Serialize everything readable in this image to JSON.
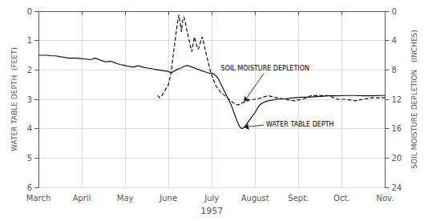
{
  "chart_data": {
    "type": "line",
    "xlabel": "1957",
    "ylabel": "WATER TABLE DEPTH  (FEET)",
    "y2label": "SOIL MOISTURE DEPLETION   (INCHES)",
    "xlim": [
      0,
      8
    ],
    "xticks": [
      {
        "value": 0,
        "label": "March"
      },
      {
        "value": 1,
        "label": "April"
      },
      {
        "value": 2,
        "label": "May"
      },
      {
        "value": 3,
        "label": "June"
      },
      {
        "value": 4,
        "label": "July"
      },
      {
        "value": 5,
        "label": "August"
      },
      {
        "value": 6,
        "label": "Sept."
      },
      {
        "value": 7,
        "label": "Oct."
      },
      {
        "value": 8,
        "label": "Nov."
      }
    ],
    "ylim": [
      6,
      0
    ],
    "yticks": [
      0,
      1,
      2,
      3,
      4,
      5,
      6
    ],
    "y2lim": [
      24,
      0
    ],
    "y2ticks": [
      0,
      4,
      8,
      12,
      16,
      20,
      24
    ],
    "grid": true,
    "series": [
      {
        "color": "#111111",
        "line_style": "solid",
        "x": [
          0.0,
          0.1,
          0.2,
          0.3,
          0.4,
          0.5,
          0.6,
          0.7,
          0.8,
          0.9,
          1.0,
          1.1,
          1.2,
          1.25,
          1.3,
          1.35,
          1.4,
          1.45,
          1.5,
          1.55,
          1.6,
          1.65,
          1.7,
          1.75,
          1.8,
          1.85,
          1.9,
          1.95,
          2.0,
          2.05,
          2.1,
          2.15,
          2.2,
          2.25,
          2.3,
          2.35,
          2.4,
          2.45,
          2.5,
          2.55,
          2.6,
          2.65,
          2.7,
          2.75,
          2.8,
          2.85,
          2.9,
          2.95,
          3.0,
          3.03,
          3.06,
          3.09,
          3.12,
          3.15,
          3.18,
          3.21,
          3.24,
          3.27,
          3.3,
          3.33,
          3.36,
          3.39,
          3.42,
          3.45,
          3.48,
          3.51,
          3.54,
          3.57,
          3.6,
          3.63,
          3.66,
          3.69,
          3.72,
          3.75,
          3.78,
          3.81,
          3.84,
          3.87,
          3.9,
          3.93,
          3.96,
          3.99,
          4.02,
          4.05,
          4.1,
          4.15,
          4.2,
          4.25,
          4.3,
          4.35,
          4.4,
          4.45,
          4.5,
          4.55,
          4.6,
          4.65,
          4.7,
          4.75,
          4.8,
          4.9,
          5.0,
          5.1,
          5.2,
          5.3,
          5.5,
          5.7,
          5.9,
          6.1,
          6.3,
          6.5,
          6.7,
          6.9,
          7.1,
          7.3,
          7.5,
          7.7,
          7.9,
          8.0
        ],
        "values": [
          1.5,
          1.5,
          1.5,
          1.52,
          1.52,
          1.55,
          1.57,
          1.6,
          1.6,
          1.6,
          1.62,
          1.63,
          1.65,
          1.63,
          1.6,
          1.62,
          1.65,
          1.68,
          1.7,
          1.72,
          1.72,
          1.7,
          1.72,
          1.75,
          1.78,
          1.8,
          1.82,
          1.83,
          1.85,
          1.87,
          1.88,
          1.9,
          1.9,
          1.88,
          1.86,
          1.88,
          1.9,
          1.92,
          1.93,
          1.95,
          1.95,
          1.97,
          1.98,
          2.0,
          2.0,
          2.02,
          2.03,
          2.04,
          2.05,
          2.08,
          2.1,
          2.08,
          2.05,
          2.03,
          2.0,
          1.98,
          1.96,
          1.95,
          1.93,
          1.9,
          1.88,
          1.87,
          1.85,
          1.85,
          1.87,
          1.88,
          1.9,
          1.92,
          1.93,
          1.95,
          1.97,
          1.98,
          2.0,
          2.02,
          2.03,
          2.05,
          2.06,
          2.08,
          2.1,
          2.1,
          2.12,
          2.1,
          2.12,
          2.15,
          2.2,
          2.3,
          2.45,
          2.6,
          2.75,
          2.9,
          3.05,
          3.2,
          3.4,
          3.6,
          3.8,
          3.95,
          4.0,
          3.95,
          3.85,
          3.65,
          3.45,
          3.2,
          3.1,
          3.05,
          3.0,
          2.98,
          2.95,
          2.93,
          2.92,
          2.9,
          2.88,
          2.88,
          2.87,
          2.87,
          2.88,
          2.88,
          2.87,
          2.87
        ]
      },
      {
        "axis": "y2",
        "color": "#111111",
        "line_style": "dashed",
        "x": [
          2.75,
          2.8,
          2.85,
          2.9,
          2.95,
          3.0,
          3.03,
          3.06,
          3.09,
          3.12,
          3.15,
          3.18,
          3.21,
          3.24,
          3.27,
          3.3,
          3.33,
          3.36,
          3.39,
          3.42,
          3.45,
          3.48,
          3.51,
          3.54,
          3.57,
          3.6,
          3.63,
          3.66,
          3.69,
          3.72,
          3.75,
          3.78,
          3.81,
          3.84,
          3.87,
          3.9,
          3.93,
          3.96,
          3.99,
          4.05,
          4.1,
          4.2,
          4.3,
          4.4,
          4.5,
          4.6,
          4.7,
          4.8,
          4.9,
          5.0,
          5.15,
          5.3,
          5.5,
          5.7,
          5.9,
          6.1,
          6.3,
          6.5,
          6.7,
          6.9,
          7.1,
          7.3,
          7.5,
          7.7,
          7.9,
          8.0
        ],
        "values": [
          11.5,
          11.8,
          11.5,
          11.0,
          10.5,
          10.0,
          9.2,
          8.5,
          7.0,
          5.5,
          4.2,
          2.8,
          1.5,
          0.5,
          1.5,
          2.8,
          1.2,
          0.8,
          1.5,
          2.5,
          3.2,
          4.0,
          4.8,
          5.5,
          4.5,
          3.5,
          4.2,
          4.8,
          5.2,
          4.6,
          4.0,
          3.5,
          4.2,
          5.0,
          5.8,
          6.5,
          7.2,
          8.0,
          8.5,
          9.5,
          10.2,
          11.0,
          11.5,
          12.0,
          12.5,
          12.8,
          12.5,
          12.3,
          12.0,
          12.0,
          11.8,
          11.5,
          11.8,
          12.0,
          12.2,
          12.0,
          11.5,
          11.5,
          11.5,
          12.0,
          12.0,
          12.2,
          12.0,
          11.8,
          11.8,
          11.8
        ]
      }
    ],
    "annotations": [
      {
        "text": "SOIL MOISTURE DEPLETION",
        "axis": "y2",
        "x": 5.2,
        "y": 8.5,
        "arrow_x": 4.75,
        "arrow_y": 12.3
      },
      {
        "text": "WATER TABLE DEPTH",
        "axis": "y2",
        "x": 5.2,
        "y": 15.5,
        "arrow_x": 4.75,
        "arrow_y": 15.8
      }
    ]
  }
}
